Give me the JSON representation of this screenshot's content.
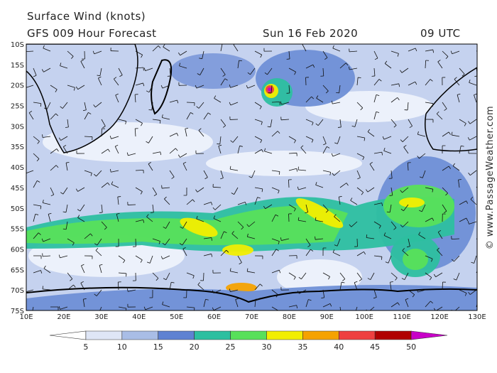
{
  "header": {
    "title": "Surface Wind (knots)",
    "subtitle": "GFS 009 Hour Forecast",
    "date": "Sun 16 Feb 2020",
    "time": "09 UTC"
  },
  "map": {
    "lat_labels": [
      "10S",
      "15S",
      "20S",
      "25S",
      "30S",
      "35S",
      "40S",
      "45S",
      "50S",
      "55S",
      "60S",
      "65S",
      "70S",
      "75S"
    ],
    "lon_labels": [
      "10E",
      "20E",
      "30E",
      "40E",
      "50E",
      "60E",
      "70E",
      "80E",
      "90E",
      "100E",
      "110E",
      "120E",
      "130E"
    ]
  },
  "colorbar": {
    "ticks": [
      5,
      10,
      15,
      20,
      25,
      30,
      35,
      40,
      45,
      50
    ],
    "colors": [
      "#ffffff",
      "#dfe6f6",
      "#a9bde6",
      "#5f82d2",
      "#2dbfa0",
      "#58e05a",
      "#f2ee00",
      "#f5a200",
      "#ee4040",
      "#b00000",
      "#c800c8"
    ]
  },
  "credit": "© www.PassageWeather.com"
}
